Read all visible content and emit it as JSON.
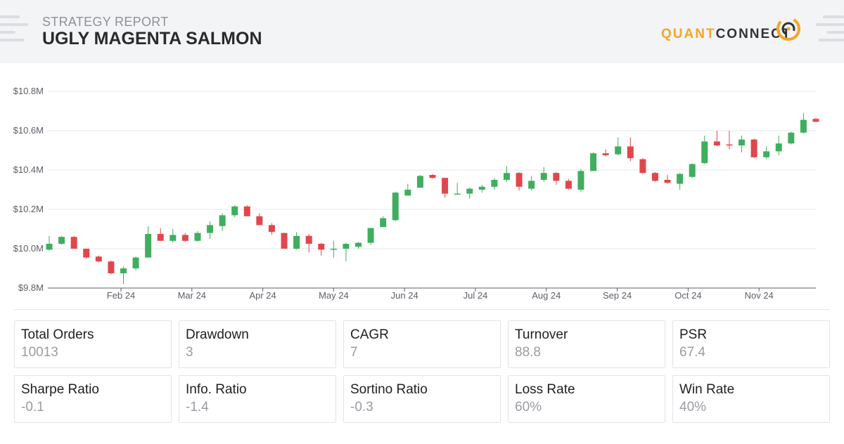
{
  "header": {
    "kicker": "STRATEGY REPORT",
    "title": "UGLY MAGENTA SALMON",
    "logo_part1": "QUANT",
    "logo_part2": "CONNECT",
    "logo_icon": "quantconnect-logo-icon"
  },
  "colors": {
    "up": "#3fae5f",
    "down": "#e0474c",
    "grid": "#e5e7eb",
    "axis": "#5c5f66",
    "logo_orange": "#f5a623"
  },
  "chart_data": {
    "type": "candlestick",
    "ylabel": "",
    "ylim": [
      9.8,
      10.8
    ],
    "y_ticks": [
      "$9.8M",
      "$10.0M",
      "$10.2M",
      "$10.4M",
      "$10.6M",
      "$10.8M"
    ],
    "y_tick_values": [
      9.8,
      10.0,
      10.2,
      10.4,
      10.6,
      10.8
    ],
    "x_ticks": [
      "Feb 24",
      "Mar 24",
      "Apr 24",
      "May 24",
      "Jun 24",
      "Jul 24",
      "Aug 24",
      "Sep 24",
      "Oct 24",
      "Nov 24"
    ],
    "unit": "$M",
    "candles": [
      {
        "o": 9.995,
        "c": 10.025,
        "h": 10.065,
        "l": 9.99
      },
      {
        "o": 10.025,
        "c": 10.06,
        "h": 10.065,
        "l": 10.02
      },
      {
        "o": 10.06,
        "c": 10.0,
        "h": 10.065,
        "l": 10.0
      },
      {
        "o": 10.0,
        "c": 9.955,
        "h": 10.0,
        "l": 9.95
      },
      {
        "o": 9.96,
        "c": 9.935,
        "h": 9.965,
        "l": 9.93
      },
      {
        "o": 9.935,
        "c": 9.875,
        "h": 9.94,
        "l": 9.87
      },
      {
        "o": 9.875,
        "c": 9.9,
        "h": 9.91,
        "l": 9.82
      },
      {
        "o": 9.9,
        "c": 9.955,
        "h": 9.96,
        "l": 9.89
      },
      {
        "o": 9.955,
        "c": 10.075,
        "h": 10.115,
        "l": 9.955
      },
      {
        "o": 10.075,
        "c": 10.04,
        "h": 10.105,
        "l": 10.04
      },
      {
        "o": 10.04,
        "c": 10.07,
        "h": 10.1,
        "l": 10.03
      },
      {
        "o": 10.07,
        "c": 10.04,
        "h": 10.08,
        "l": 10.035
      },
      {
        "o": 10.04,
        "c": 10.08,
        "h": 10.09,
        "l": 10.035
      },
      {
        "o": 10.08,
        "c": 10.12,
        "h": 10.14,
        "l": 10.05
      },
      {
        "o": 10.115,
        "c": 10.17,
        "h": 10.18,
        "l": 10.09
      },
      {
        "o": 10.17,
        "c": 10.215,
        "h": 10.22,
        "l": 10.16
      },
      {
        "o": 10.215,
        "c": 10.165,
        "h": 10.22,
        "l": 10.165
      },
      {
        "o": 10.165,
        "c": 10.12,
        "h": 10.18,
        "l": 10.12
      },
      {
        "o": 10.12,
        "c": 10.085,
        "h": 10.13,
        "l": 10.07
      },
      {
        "o": 10.08,
        "c": 10.0,
        "h": 10.08,
        "l": 10.0
      },
      {
        "o": 10.0,
        "c": 10.065,
        "h": 10.085,
        "l": 9.995
      },
      {
        "o": 10.065,
        "c": 10.025,
        "h": 10.075,
        "l": 9.98
      },
      {
        "o": 10.025,
        "c": 9.995,
        "h": 10.03,
        "l": 9.965
      },
      {
        "o": 10.0,
        "c": 10.0,
        "h": 10.04,
        "l": 9.955
      },
      {
        "o": 10.0,
        "c": 10.025,
        "h": 10.03,
        "l": 9.935
      },
      {
        "o": 10.01,
        "c": 10.03,
        "h": 10.035,
        "l": 10.0
      },
      {
        "o": 10.03,
        "c": 10.105,
        "h": 10.105,
        "l": 10.02
      },
      {
        "o": 10.11,
        "c": 10.155,
        "h": 10.165,
        "l": 10.11
      },
      {
        "o": 10.145,
        "c": 10.285,
        "h": 10.29,
        "l": 10.14
      },
      {
        "o": 10.27,
        "c": 10.3,
        "h": 10.33,
        "l": 10.27
      },
      {
        "o": 10.31,
        "c": 10.37,
        "h": 10.375,
        "l": 10.31
      },
      {
        "o": 10.375,
        "c": 10.36,
        "h": 10.38,
        "l": 10.355
      },
      {
        "o": 10.36,
        "c": 10.28,
        "h": 10.36,
        "l": 10.26
      },
      {
        "o": 10.28,
        "c": 10.28,
        "h": 10.335,
        "l": 10.275
      },
      {
        "o": 10.28,
        "c": 10.305,
        "h": 10.31,
        "l": 10.255
      },
      {
        "o": 10.3,
        "c": 10.315,
        "h": 10.325,
        "l": 10.285
      },
      {
        "o": 10.315,
        "c": 10.35,
        "h": 10.36,
        "l": 10.3
      },
      {
        "o": 10.35,
        "c": 10.385,
        "h": 10.42,
        "l": 10.34
      },
      {
        "o": 10.385,
        "c": 10.315,
        "h": 10.39,
        "l": 10.295
      },
      {
        "o": 10.305,
        "c": 10.345,
        "h": 10.37,
        "l": 10.295
      },
      {
        "o": 10.35,
        "c": 10.385,
        "h": 10.415,
        "l": 10.34
      },
      {
        "o": 10.385,
        "c": 10.345,
        "h": 10.39,
        "l": 10.325
      },
      {
        "o": 10.345,
        "c": 10.305,
        "h": 10.355,
        "l": 10.3
      },
      {
        "o": 10.3,
        "c": 10.395,
        "h": 10.405,
        "l": 10.29
      },
      {
        "o": 10.395,
        "c": 10.485,
        "h": 10.49,
        "l": 10.395
      },
      {
        "o": 10.485,
        "c": 10.475,
        "h": 10.505,
        "l": 10.47
      },
      {
        "o": 10.48,
        "c": 10.52,
        "h": 10.565,
        "l": 10.475
      },
      {
        "o": 10.52,
        "c": 10.46,
        "h": 10.565,
        "l": 10.445
      },
      {
        "o": 10.455,
        "c": 10.385,
        "h": 10.46,
        "l": 10.38
      },
      {
        "o": 10.385,
        "c": 10.345,
        "h": 10.39,
        "l": 10.34
      },
      {
        "o": 10.35,
        "c": 10.335,
        "h": 10.375,
        "l": 10.33
      },
      {
        "o": 10.33,
        "c": 10.38,
        "h": 10.385,
        "l": 10.3
      },
      {
        "o": 10.365,
        "c": 10.43,
        "h": 10.435,
        "l": 10.36
      },
      {
        "o": 10.435,
        "c": 10.545,
        "h": 10.575,
        "l": 10.43
      },
      {
        "o": 10.545,
        "c": 10.525,
        "h": 10.6,
        "l": 10.52
      },
      {
        "o": 10.53,
        "c": 10.525,
        "h": 10.6,
        "l": 10.505
      },
      {
        "o": 10.525,
        "c": 10.555,
        "h": 10.575,
        "l": 10.49
      },
      {
        "o": 10.555,
        "c": 10.465,
        "h": 10.56,
        "l": 10.46
      },
      {
        "o": 10.465,
        "c": 10.495,
        "h": 10.52,
        "l": 10.455
      },
      {
        "o": 10.495,
        "c": 10.535,
        "h": 10.575,
        "l": 10.475
      },
      {
        "o": 10.535,
        "c": 10.59,
        "h": 10.595,
        "l": 10.53
      },
      {
        "o": 10.59,
        "c": 10.655,
        "h": 10.69,
        "l": 10.585
      },
      {
        "o": 10.66,
        "c": 10.645,
        "h": 10.665,
        "l": 10.645
      }
    ]
  },
  "stats": [
    {
      "label": "Total Orders",
      "value": "10013"
    },
    {
      "label": "Drawdown",
      "value": "3"
    },
    {
      "label": "CAGR",
      "value": "7"
    },
    {
      "label": "Turnover",
      "value": "88.8"
    },
    {
      "label": "PSR",
      "value": "67.4"
    },
    {
      "label": "Sharpe Ratio",
      "value": "-0.1"
    },
    {
      "label": "Info. Ratio",
      "value": "-1.4"
    },
    {
      "label": "Sortino Ratio",
      "value": "-0.3"
    },
    {
      "label": "Loss Rate",
      "value": "60%"
    },
    {
      "label": "Win Rate",
      "value": "40%"
    }
  ]
}
